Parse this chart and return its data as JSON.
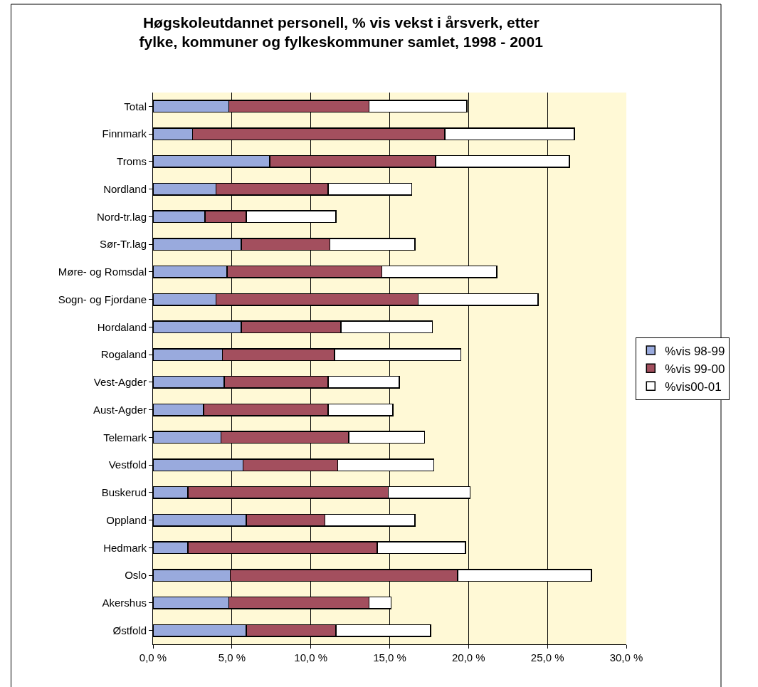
{
  "chart_data": {
    "type": "bar",
    "orientation": "horizontal",
    "stacked": true,
    "title": "Høgskoleutdannet personell, % vis vekst i årsverk, etter fylke, kommuner og fylkeskommuner samlet, 1998 - 2001",
    "categories": [
      "Total",
      "Finnmark",
      "Troms",
      "Nordland",
      "Nord-tr.lag",
      "Sør-Tr.lag",
      "Møre- og Romsdal",
      "Sogn- og Fjordane",
      "Hordaland",
      "Rogaland",
      "Vest-Agder",
      "Aust-Agder",
      "Telemark",
      "Vestfold",
      "Buskerud",
      "Oppland",
      "Hedmark",
      "Oslo",
      "Akershus",
      "Østfold"
    ],
    "series": [
      {
        "name": "%vis 98-99",
        "color": "#99aadd",
        "values": [
          4.8,
          2.5,
          7.4,
          4.0,
          3.3,
          5.6,
          4.7,
          4.0,
          5.6,
          4.4,
          4.5,
          3.2,
          4.3,
          5.7,
          2.2,
          5.9,
          2.2,
          4.9,
          4.8,
          5.9
        ]
      },
      {
        "name": "%vis 99-00",
        "color": "#a34f5e",
        "values": [
          8.9,
          16.0,
          10.5,
          7.1,
          2.6,
          5.6,
          9.8,
          12.8,
          6.3,
          7.1,
          6.6,
          7.9,
          8.1,
          6.0,
          12.7,
          5.0,
          12.0,
          14.4,
          8.9,
          5.7
        ]
      },
      {
        "name": "%vis00-01",
        "color": "#ffffff",
        "values": [
          6.2,
          8.2,
          8.5,
          5.3,
          5.7,
          5.4,
          7.3,
          7.6,
          5.8,
          8.0,
          4.5,
          4.1,
          4.8,
          6.1,
          5.2,
          5.7,
          5.6,
          8.5,
          1.4,
          6.0
        ]
      }
    ],
    "xlim": [
      0,
      30
    ],
    "xticks": [
      {
        "value": 0,
        "label": "0,0 %"
      },
      {
        "value": 5,
        "label": "5,0 %"
      },
      {
        "value": 10,
        "label": "10,0 %"
      },
      {
        "value": 15,
        "label": "15,0 %"
      },
      {
        "value": 20,
        "label": "20,0 %"
      },
      {
        "value": 25,
        "label": "25,0 %"
      },
      {
        "value": 30,
        "label": "30,0 %"
      }
    ],
    "grid": "x",
    "legend": "right"
  }
}
